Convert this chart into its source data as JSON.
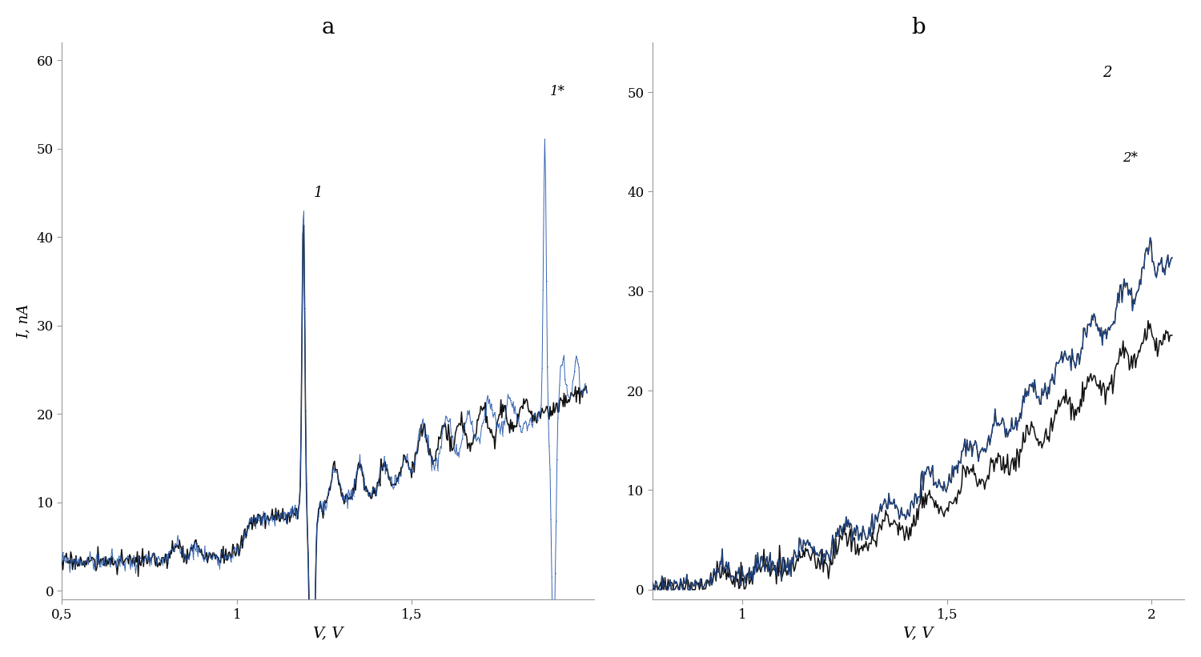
{
  "fig_width": 15.0,
  "fig_height": 8.21,
  "background_color": "#ffffff",
  "panel_a": {
    "title": "a",
    "xlabel": "V, V",
    "ylabel": "I, nA",
    "xlim": [
      0.5,
      2.02
    ],
    "ylim": [
      -1,
      62
    ],
    "xticks": [
      0.5,
      1.0,
      1.5
    ],
    "xticklabels": [
      "0,5",
      "1",
      "1,5"
    ],
    "yticks": [
      0,
      10,
      20,
      30,
      40,
      50,
      60
    ],
    "curve1_label": "1",
    "curve1star_label": "1*",
    "color_black": "#111111",
    "color_blue": "#2255aa"
  },
  "panel_b": {
    "title": "b",
    "xlabel": "V, V",
    "ylabel": "",
    "xlim": [
      0.78,
      2.08
    ],
    "ylim": [
      -1,
      55
    ],
    "xticks": [
      1.0,
      1.5,
      2.0
    ],
    "xticklabels": [
      "1",
      "1,5",
      "2"
    ],
    "yticks": [
      0,
      10,
      20,
      30,
      40,
      50
    ],
    "curve2_label": "2",
    "curve2star_label": "2*",
    "color_black": "#111111",
    "color_blue": "#2255aa"
  }
}
